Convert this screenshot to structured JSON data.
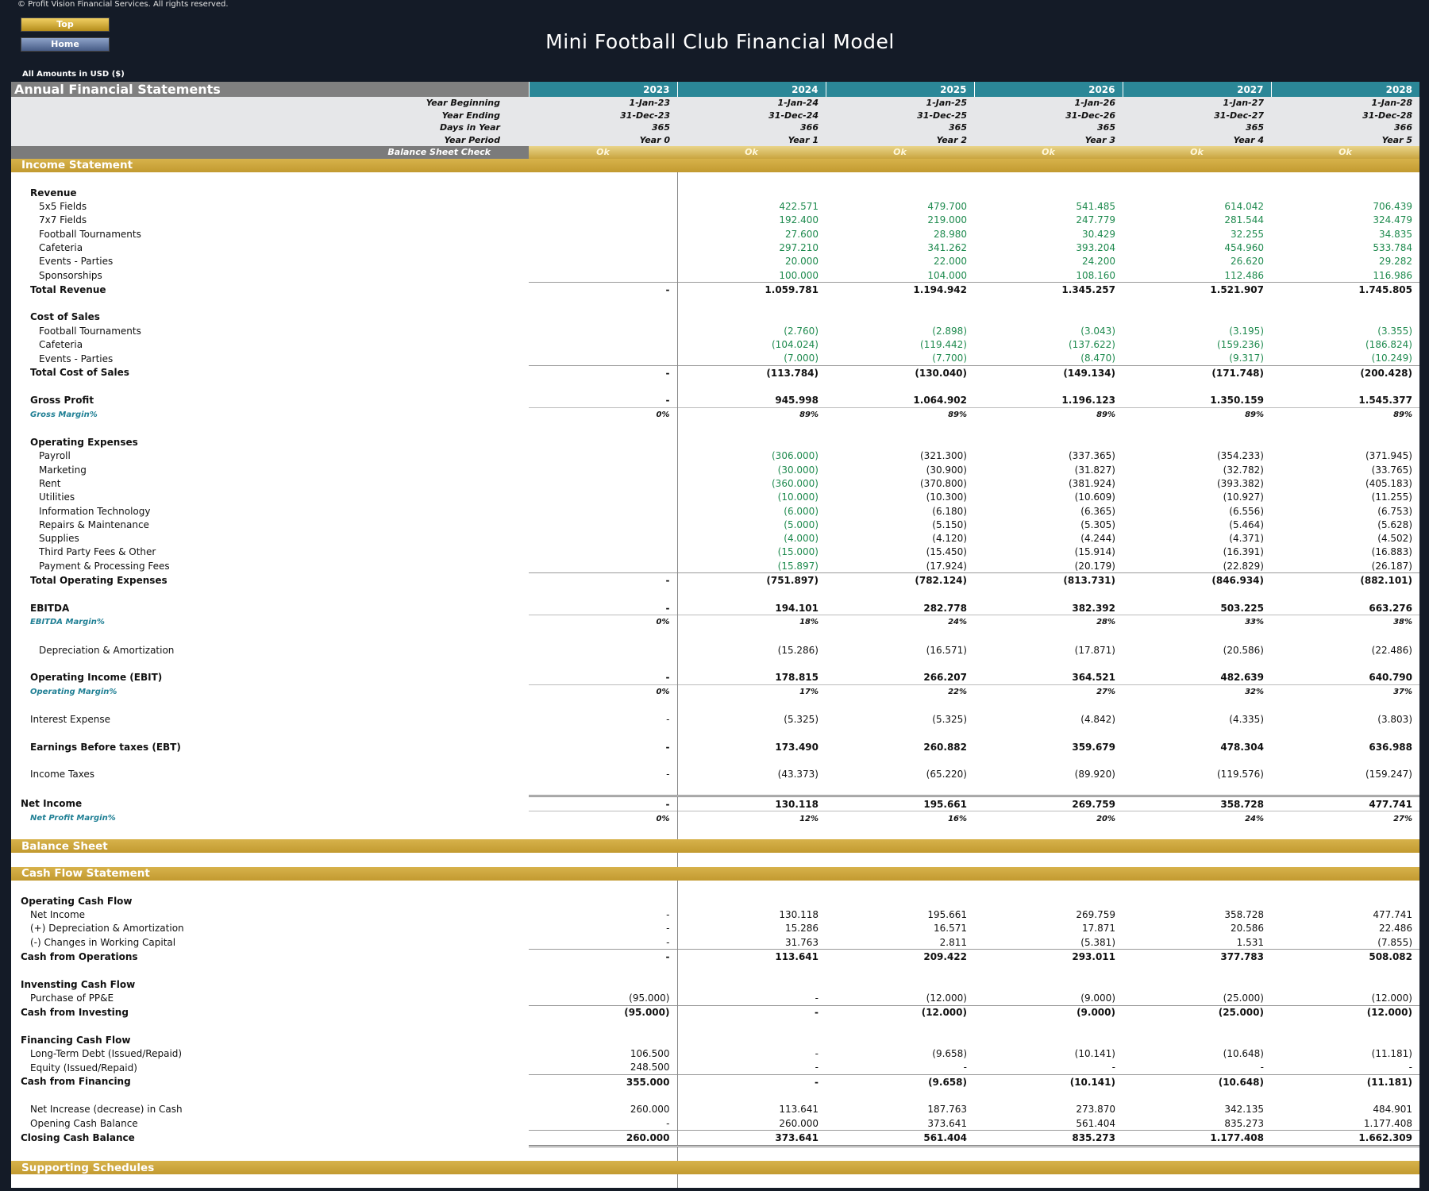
{
  "copyright": "© Profit Vision Financial Services. All rights reserved.",
  "buttons": [
    "Top",
    "Home"
  ],
  "title": "Mini Football Club Financial Model",
  "amounts_note": "All Amounts in  USD ($)",
  "header": {
    "label": "Annual Financial Statements",
    "years": [
      "2023",
      "2024",
      "2025",
      "2026",
      "2027",
      "2028"
    ]
  },
  "meta": [
    {
      "label": "Year Beginning",
      "values": [
        "1-Jan-23",
        "1-Jan-24",
        "1-Jan-25",
        "1-Jan-26",
        "1-Jan-27",
        "1-Jan-28"
      ]
    },
    {
      "label": "Year Ending",
      "values": [
        "31-Dec-23",
        "31-Dec-24",
        "31-Dec-25",
        "31-Dec-26",
        "31-Dec-27",
        "31-Dec-28"
      ]
    },
    {
      "label": "Days in Year",
      "values": [
        "365",
        "366",
        "365",
        "365",
        "365",
        "366"
      ]
    },
    {
      "label": "Year Period",
      "values": [
        "Year 0",
        "Year 1",
        "Year 2",
        "Year 3",
        "Year 4",
        "Year 5"
      ]
    }
  ],
  "check": {
    "label": "Balance Sheet Check",
    "values": [
      "Ok",
      "Ok",
      "Ok",
      "Ok",
      "Ok",
      "Ok"
    ]
  },
  "sections": [
    {
      "title": "Income Statement",
      "blocks": [
        {
          "heading": "Revenue",
          "items": [
            {
              "label": "5x5 Fields",
              "values": [
                null,
                "422.571",
                "479.700",
                "541.485",
                "614.042",
                "706.439"
              ]
            },
            {
              "label": "7x7 Fields",
              "values": [
                null,
                "192.400",
                "219.000",
                "247.779",
                "281.544",
                "324.479"
              ]
            },
            {
              "label": "Football Tournaments",
              "values": [
                null,
                "27.600",
                "28.980",
                "30.429",
                "32.255",
                "34.835"
              ]
            },
            {
              "label": "Cafeteria",
              "values": [
                null,
                "297.210",
                "341.262",
                "393.204",
                "454.960",
                "533.784"
              ]
            },
            {
              "label": "Events - Parties",
              "values": [
                null,
                "20.000",
                "22.000",
                "24.200",
                "26.620",
                "29.282"
              ]
            },
            {
              "label": "Sponsorships",
              "values": [
                null,
                "100.000",
                "104.000",
                "108.160",
                "112.486",
                "116.986"
              ]
            }
          ],
          "total": {
            "label": "Total Revenue",
            "values": [
              "-",
              "1.059.781",
              "1.194.942",
              "1.345.257",
              "1.521.907",
              "1.745.805"
            ]
          }
        },
        {
          "heading": "Cost of Sales",
          "items": [
            {
              "label": "Football Tournaments",
              "values": [
                null,
                "(2.760)",
                "(2.898)",
                "(3.043)",
                "(3.195)",
                "(3.355)"
              ]
            },
            {
              "label": "Cafeteria",
              "values": [
                null,
                "(104.024)",
                "(119.442)",
                "(137.622)",
                "(159.236)",
                "(186.824)"
              ]
            },
            {
              "label": "Events - Parties",
              "values": [
                null,
                "(7.000)",
                "(7.700)",
                "(8.470)",
                "(9.317)",
                "(10.249)"
              ]
            }
          ],
          "total": {
            "label": "Total Cost of Sales",
            "values": [
              "-",
              "(113.784)",
              "(130.040)",
              "(149.134)",
              "(171.748)",
              "(200.428)"
            ]
          }
        },
        {
          "total": {
            "label": "Gross Profit",
            "values": [
              "-",
              "945.998",
              "1.064.902",
              "1.196.123",
              "1.350.159",
              "1.545.377"
            ]
          },
          "margin": {
            "label": "Gross Margin%",
            "values": [
              "0%",
              "89%",
              "89%",
              "89%",
              "89%",
              "89%"
            ]
          }
        },
        {
          "heading": "Operating Expenses",
          "items": [
            {
              "label": "Payroll",
              "values": [
                null,
                "(306.000)",
                "(321.300)",
                "(337.365)",
                "(354.233)",
                "(371.945)"
              ]
            },
            {
              "label": "Marketing",
              "values": [
                null,
                "(30.000)",
                "(30.900)",
                "(31.827)",
                "(32.782)",
                "(33.765)"
              ]
            },
            {
              "label": "Rent",
              "values": [
                null,
                "(360.000)",
                "(370.800)",
                "(381.924)",
                "(393.382)",
                "(405.183)"
              ]
            },
            {
              "label": "Utilities",
              "values": [
                null,
                "(10.000)",
                "(10.300)",
                "(10.609)",
                "(10.927)",
                "(11.255)"
              ]
            },
            {
              "label": "Information Technology",
              "values": [
                null,
                "(6.000)",
                "(6.180)",
                "(6.365)",
                "(6.556)",
                "(6.753)"
              ]
            },
            {
              "label": "Repairs & Maintenance",
              "values": [
                null,
                "(5.000)",
                "(5.150)",
                "(5.305)",
                "(5.464)",
                "(5.628)"
              ]
            },
            {
              "label": "Supplies",
              "values": [
                null,
                "(4.000)",
                "(4.120)",
                "(4.244)",
                "(4.371)",
                "(4.502)"
              ]
            },
            {
              "label": "Third Party Fees & Other",
              "values": [
                null,
                "(15.000)",
                "(15.450)",
                "(15.914)",
                "(16.391)",
                "(16.883)"
              ]
            },
            {
              "label": "Payment & Processing Fees",
              "values": [
                null,
                "(15.897)",
                "(17.924)",
                "(20.179)",
                "(22.829)",
                "(26.187)"
              ]
            }
          ],
          "total": {
            "label": "Total Operating Expenses",
            "values": [
              "-",
              "(751.897)",
              "(782.124)",
              "(813.731)",
              "(846.934)",
              "(882.101)"
            ]
          }
        },
        {
          "total": {
            "label": "EBITDA",
            "values": [
              "-",
              "194.101",
              "282.778",
              "382.392",
              "503.225",
              "663.276"
            ]
          },
          "margin": {
            "label": "EBITDA Margin%",
            "values": [
              "0%",
              "18%",
              "24%",
              "28%",
              "33%",
              "38%"
            ]
          }
        },
        {
          "items": [
            {
              "label": "Depreciation & Amortization",
              "values": [
                null,
                "(15.286)",
                "(16.571)",
                "(17.871)",
                "(20.586)",
                "(22.486)"
              ]
            }
          ]
        },
        {
          "total": {
            "label": "Operating Income (EBIT)",
            "values": [
              "-",
              "178.815",
              "266.207",
              "364.521",
              "482.639",
              "640.790"
            ]
          },
          "margin": {
            "label": "Operating Margin%",
            "values": [
              "0%",
              "17%",
              "22%",
              "27%",
              "32%",
              "37%"
            ]
          }
        },
        {
          "lines": [
            {
              "label": "Interest Expense",
              "values": [
                "-",
                "(5.325)",
                "(5.325)",
                "(4.842)",
                "(4.335)",
                "(3.803)"
              ]
            }
          ]
        },
        {
          "total": {
            "label": "Earnings Before taxes (EBT)",
            "values": [
              "-",
              "173.490",
              "260.882",
              "359.679",
              "478.304",
              "636.988"
            ]
          }
        },
        {
          "lines": [
            {
              "label": "Income Taxes",
              "values": [
                "-",
                "(43.373)",
                "(65.220)",
                "(89.920)",
                "(119.576)",
                "(159.247)"
              ]
            }
          ]
        },
        {
          "total": {
            "label": "Net Income",
            "values": [
              "-",
              "130.118",
              "195.661",
              "269.759",
              "358.728",
              "477.741"
            ]
          },
          "margin": {
            "label": "Net Profit Margin%",
            "values": [
              "0%",
              "12%",
              "16%",
              "20%",
              "24%",
              "27%"
            ]
          }
        }
      ]
    },
    {
      "title": "Balance Sheet"
    },
    {
      "title": "Cash Flow Statement",
      "blocks": [
        {
          "heading": "Operating Cash Flow",
          "items": [
            {
              "label": "Net Income",
              "values": [
                "-",
                "130.118",
                "195.661",
                "269.759",
                "358.728",
                "477.741"
              ]
            },
            {
              "label": "(+) Depreciation & Amortization",
              "values": [
                "-",
                "15.286",
                "16.571",
                "17.871",
                "20.586",
                "22.486"
              ]
            },
            {
              "label": "(-) Changes in Working Capital",
              "values": [
                "-",
                "31.763",
                "2.811",
                "(5.381)",
                "1.531",
                "(7.855)"
              ]
            }
          ],
          "total": {
            "label": "Cash from Operations",
            "values": [
              "-",
              "113.641",
              "209.422",
              "293.011",
              "377.783",
              "508.082"
            ]
          }
        },
        {
          "heading": "Invensting Cash Flow",
          "items": [
            {
              "label": "Purchase of PP&E",
              "values": [
                "(95.000)",
                "-",
                "(12.000)",
                "(9.000)",
                "(25.000)",
                "(12.000)"
              ]
            }
          ],
          "total": {
            "label": "Cash from Investing",
            "values": [
              "(95.000)",
              "-",
              "(12.000)",
              "(9.000)",
              "(25.000)",
              "(12.000)"
            ]
          }
        },
        {
          "heading": "Financing Cash Flow",
          "items": [
            {
              "label": "Long-Term Debt (Issued/Repaid)",
              "values": [
                "106.500",
                "-",
                "(9.658)",
                "(10.141)",
                "(10.648)",
                "(11.181)"
              ]
            },
            {
              "label": "Equity (Issued/Repaid)",
              "values": [
                "248.500",
                "-",
                "-",
                "-",
                "-",
                "-"
              ]
            }
          ],
          "total": {
            "label": "Cash from Financing",
            "values": [
              "355.000",
              "-",
              "(9.658)",
              "(10.141)",
              "(10.648)",
              "(11.181)"
            ]
          }
        },
        {
          "items": [
            {
              "label": "Net Increase (decrease) in Cash",
              "values": [
                "260.000",
                "113.641",
                "187.763",
                "273.870",
                "342.135",
                "484.901"
              ]
            },
            {
              "label": "Opening Cash Balance",
              "values": [
                "-",
                "260.000",
                "373.641",
                "561.404",
                "835.273",
                "1.177.408"
              ]
            }
          ],
          "total": {
            "label": "Closing Cash Balance",
            "values": [
              "260.000",
              "373.641",
              "561.404",
              "835.273",
              "1.177.408",
              "1.662.309"
            ]
          }
        }
      ]
    },
    {
      "title": "Supporting Schedules"
    }
  ]
}
